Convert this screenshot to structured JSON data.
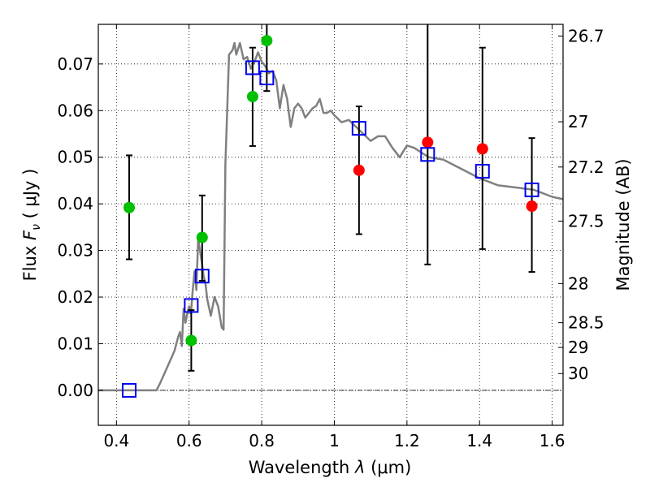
{
  "chart_data": {
    "type": "scatter",
    "xlabel_prefix": "Wavelength",
    "xlabel_lambda": "λ",
    "xlabel_unit": "(μm)",
    "ylabel_prefix": "Flux",
    "ylabel_F": "F",
    "ylabel_nu": "ν",
    "ylabel_unit": "( μJy )",
    "y2label": "Magnitude (AB)",
    "xlim": [
      0.35,
      1.63
    ],
    "ylim": [
      -0.0075,
      0.0785
    ],
    "grid": true,
    "x_ticks": [
      {
        "value": 0.4,
        "label": "0.4"
      },
      {
        "value": 0.6,
        "label": "0.6"
      },
      {
        "value": 0.8,
        "label": "0.8"
      },
      {
        "value": 1.0,
        "label": "1"
      },
      {
        "value": 1.2,
        "label": "1.2"
      },
      {
        "value": 1.4,
        "label": "1.4"
      },
      {
        "value": 1.6,
        "label": "1.6"
      }
    ],
    "y_ticks": [
      {
        "value": 0.0,
        "label": "0.00"
      },
      {
        "value": 0.01,
        "label": "0.01"
      },
      {
        "value": 0.02,
        "label": "0.02"
      },
      {
        "value": 0.03,
        "label": "0.03"
      },
      {
        "value": 0.04,
        "label": "0.04"
      },
      {
        "value": 0.05,
        "label": "0.05"
      },
      {
        "value": 0.06,
        "label": "0.06"
      },
      {
        "value": 0.07,
        "label": "0.07"
      }
    ],
    "y2_ticks": [
      {
        "label": "26.7",
        "flux": 0.076
      },
      {
        "label": "27",
        "flux": 0.0576
      },
      {
        "label": "27.2",
        "flux": 0.0479
      },
      {
        "label": "27.5",
        "flux": 0.0363
      },
      {
        "label": "28",
        "flux": 0.0229
      },
      {
        "label": "28.5",
        "flux": 0.0145
      },
      {
        "label": "29",
        "flux": 0.0092
      },
      {
        "label": "30",
        "flux": 0.0036
      }
    ],
    "model_sed": {
      "color": "#808080",
      "x": [
        0.35,
        0.4,
        0.45,
        0.5,
        0.51,
        0.52,
        0.54,
        0.56,
        0.57,
        0.575,
        0.58,
        0.585,
        0.59,
        0.595,
        0.6,
        0.605,
        0.61,
        0.615,
        0.62,
        0.625,
        0.63,
        0.635,
        0.64,
        0.645,
        0.65,
        0.66,
        0.67,
        0.68,
        0.69,
        0.695,
        0.7,
        0.71,
        0.72,
        0.725,
        0.73,
        0.74,
        0.75,
        0.76,
        0.77,
        0.78,
        0.79,
        0.8,
        0.81,
        0.82,
        0.83,
        0.84,
        0.85,
        0.86,
        0.87,
        0.88,
        0.89,
        0.9,
        0.91,
        0.92,
        0.93,
        0.94,
        0.95,
        0.96,
        0.97,
        0.98,
        0.99,
        1.0,
        1.02,
        1.04,
        1.06,
        1.08,
        1.1,
        1.12,
        1.14,
        1.16,
        1.18,
        1.2,
        1.22,
        1.24,
        1.26,
        1.3,
        1.35,
        1.4,
        1.45,
        1.5,
        1.55,
        1.6,
        1.63
      ],
      "y": [
        0.0,
        0.0,
        0.0,
        0.0,
        0.0,
        0.0015,
        0.005,
        0.0085,
        0.0115,
        0.0125,
        0.0095,
        0.0175,
        0.0145,
        0.0165,
        0.018,
        0.0165,
        0.0215,
        0.0255,
        0.0215,
        0.0325,
        0.03,
        0.0275,
        0.0245,
        0.023,
        0.0195,
        0.016,
        0.02,
        0.018,
        0.0135,
        0.013,
        0.0485,
        0.072,
        0.073,
        0.0745,
        0.072,
        0.0745,
        0.071,
        0.0715,
        0.069,
        0.0705,
        0.0725,
        0.0705,
        0.0695,
        0.068,
        0.0685,
        0.0665,
        0.0605,
        0.0655,
        0.0625,
        0.0565,
        0.0605,
        0.0615,
        0.0605,
        0.0585,
        0.0595,
        0.0605,
        0.061,
        0.0625,
        0.0595,
        0.0595,
        0.06,
        0.059,
        0.0575,
        0.058,
        0.0565,
        0.055,
        0.0535,
        0.0545,
        0.0545,
        0.052,
        0.05,
        0.0525,
        0.052,
        0.051,
        0.05,
        0.0495,
        0.0475,
        0.0455,
        0.044,
        0.0435,
        0.043,
        0.0415,
        0.041
      ]
    },
    "series": [
      {
        "marker": "circle-filled",
        "color": "#00c000",
        "points": [
          {
            "x": 0.435,
            "y": 0.0392,
            "lo": 0.0281,
            "hi": 0.0504
          },
          {
            "x": 0.606,
            "y": 0.0107,
            "lo": 0.0042,
            "hi": 0.0172
          },
          {
            "x": 0.636,
            "y": 0.0328,
            "lo": 0.0235,
            "hi": 0.0418
          },
          {
            "x": 0.775,
            "y": 0.063,
            "lo": 0.0524,
            "hi": 0.0735
          },
          {
            "x": 0.814,
            "y": 0.075,
            "lo": 0.0642,
            "hi": 0.079
          }
        ]
      },
      {
        "marker": "circle-filled",
        "color": "#ff0000",
        "points": [
          {
            "x": 1.068,
            "y": 0.0472,
            "lo": 0.0335,
            "hi": 0.0609
          },
          {
            "x": 1.257,
            "y": 0.0532,
            "lo": 0.027,
            "hi": 0.079
          },
          {
            "x": 1.408,
            "y": 0.0518,
            "lo": 0.0303,
            "hi": 0.0735
          },
          {
            "x": 1.544,
            "y": 0.0395,
            "lo": 0.0254,
            "hi": 0.0541
          }
        ]
      },
      {
        "marker": "square-open",
        "color": "#0000ee",
        "points": [
          {
            "x": 0.435,
            "y": 0.0
          },
          {
            "x": 0.606,
            "y": 0.0182
          },
          {
            "x": 0.636,
            "y": 0.0245
          },
          {
            "x": 0.775,
            "y": 0.0692
          },
          {
            "x": 0.814,
            "y": 0.067
          },
          {
            "x": 1.068,
            "y": 0.0562
          },
          {
            "x": 1.257,
            "y": 0.0506
          },
          {
            "x": 1.408,
            "y": 0.047
          },
          {
            "x": 1.544,
            "y": 0.043
          }
        ]
      }
    ]
  }
}
